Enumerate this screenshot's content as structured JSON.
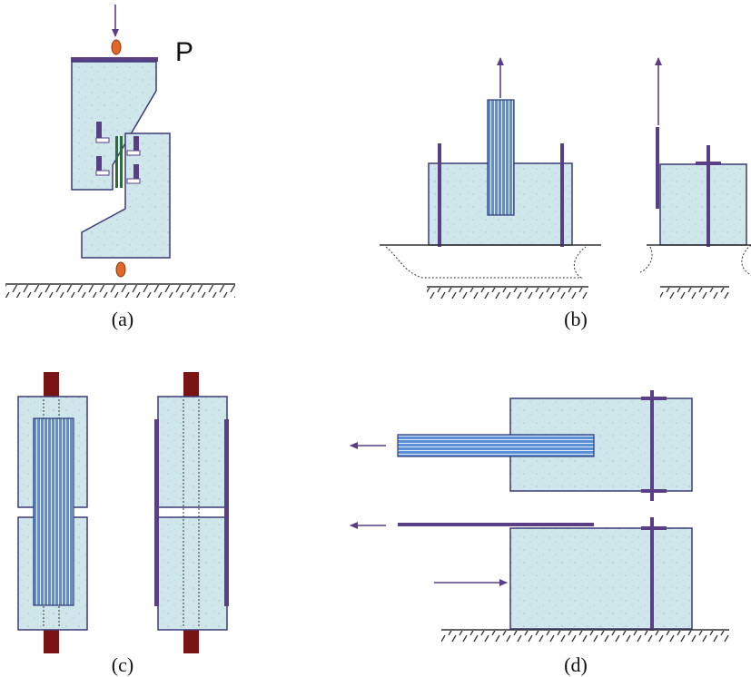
{
  "figure": {
    "load_label": "P",
    "panels": [
      {
        "id": "a",
        "label": "(a)"
      },
      {
        "id": "b",
        "label": "(b)"
      },
      {
        "id": "c",
        "label": "(c)"
      },
      {
        "id": "d",
        "label": "(d)"
      }
    ]
  },
  "colors": {
    "concrete": "#cfe6ea",
    "plate": "#5a3f86",
    "frp": "#5b8fd6",
    "anchor": "#8b1a1a",
    "pin": "#e0682a"
  }
}
